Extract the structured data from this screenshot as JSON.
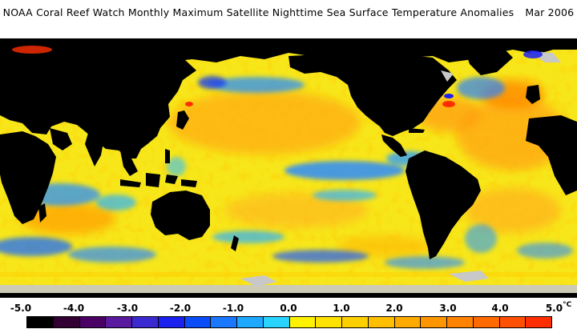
{
  "header": {
    "title": "NOAA Coral Reef Watch Monthly Maximum Satellite Nighttime Sea Surface Temperature Anomalies",
    "date": "Mar 2006"
  },
  "map": {
    "land_color": "#000000",
    "ice_color": "#c8c8c8",
    "ocean_base_color": "#f7e71a"
  },
  "legend": {
    "ticks": [
      "-5.0",
      "-4.0",
      "-3.0",
      "-2.0",
      "-1.0",
      "0.0",
      "1.0",
      "2.0",
      "3.0",
      "4.0",
      "5.0"
    ],
    "unit": "°C",
    "colors": [
      "#000000",
      "#330033",
      "#4b0066",
      "#5a1aa0",
      "#3a2ad0",
      "#1a20ee",
      "#0a4cf8",
      "#1a78ff",
      "#1ea8ff",
      "#28d4ff",
      "#fff200",
      "#ffe200",
      "#ffd000",
      "#ffbe00",
      "#ffaa00",
      "#ff9600",
      "#ff8200",
      "#ff6a00",
      "#ff5000",
      "#ff2e00"
    ]
  }
}
